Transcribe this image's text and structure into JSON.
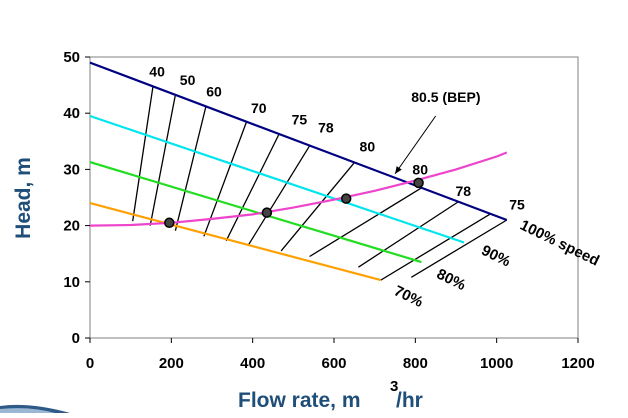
{
  "chart_data": {
    "type": "line",
    "title": "",
    "xlabel": "Flow rate, m",
    "xlabel_superscript": "3",
    "xlabel_suffix": "/hr",
    "ylabel": "Head, m",
    "xlim": [
      0,
      1200
    ],
    "ylim": [
      0,
      50
    ],
    "x_ticks": [
      "0",
      "200",
      "400",
      "600",
      "800",
      "1000",
      "1200"
    ],
    "y_ticks": [
      "0",
      "10",
      "20",
      "30",
      "40",
      "50"
    ],
    "grid": false,
    "speed_curves": [
      {
        "label": "100% speed",
        "color": "#000080",
        "x": [
          0,
          1025
        ],
        "y": [
          49,
          21
        ]
      },
      {
        "label": "90%",
        "color": "#00e5ee",
        "x": [
          0,
          920
        ],
        "y": [
          39.5,
          17
        ]
      },
      {
        "label": "80%",
        "color": "#22dd22",
        "x": [
          0,
          815
        ],
        "y": [
          31.3,
          13.5
        ]
      },
      {
        "label": "70%",
        "color": "#ffa000",
        "x": [
          0,
          715
        ],
        "y": [
          24,
          10.3
        ]
      }
    ],
    "system_curve": {
      "color": "#ee44cc",
      "x": [
        0,
        100,
        200,
        300,
        400,
        500,
        600,
        700,
        800,
        900,
        1000,
        1025
      ],
      "y": [
        20,
        20.1,
        20.5,
        21.2,
        22,
        23.2,
        24.6,
        26.2,
        28,
        30,
        32.3,
        33
      ]
    },
    "iso_efficiency": [
      {
        "label": "40",
        "x": [
          155,
          105
        ],
        "y": [
          44.8,
          20.8
        ]
      },
      {
        "label": "50",
        "x": [
          210,
          148
        ],
        "y": [
          43.3,
          20.0
        ]
      },
      {
        "label": "60",
        "x": [
          285,
          210
        ],
        "y": [
          41.2,
          19.1
        ]
      },
      {
        "label": "70",
        "x": [
          385,
          280
        ],
        "y": [
          38.5,
          18.1
        ]
      },
      {
        "label": "75",
        "x": [
          465,
          335
        ],
        "y": [
          36.3,
          17.3
        ]
      },
      {
        "label": "78",
        "x": [
          540,
          390
        ],
        "y": [
          34.2,
          16.6
        ]
      },
      {
        "label": "80",
        "x": [
          650,
          470
        ],
        "y": [
          31.2,
          15.5
        ]
      },
      {
        "label": "80.5",
        "x": [
          815,
          540
        ],
        "y": [
          26.7,
          14.5
        ]
      },
      {
        "label": "80",
        "x": [
          905,
          660
        ],
        "y": [
          24.2,
          12.6
        ]
      },
      {
        "label": "78",
        "x": [
          985,
          715
        ],
        "y": [
          22.1,
          10.3
        ]
      },
      {
        "label": "75",
        "x": [
          1025,
          790
        ],
        "y": [
          21.0,
          10.8
        ]
      }
    ],
    "efficiency_labels": [
      {
        "text": "40",
        "x": 165,
        "y": 46.5
      },
      {
        "text": "50",
        "x": 240,
        "y": 45.0
      },
      {
        "text": "60",
        "x": 305,
        "y": 43.0
      },
      {
        "text": "70",
        "x": 415,
        "y": 40.0
      },
      {
        "text": "75",
        "x": 515,
        "y": 38.0
      },
      {
        "text": "78",
        "x": 580,
        "y": 36.6
      },
      {
        "text": "80",
        "x": 682,
        "y": 33.2
      },
      {
        "text": "80",
        "x": 812,
        "y": 29.1
      },
      {
        "text": "78",
        "x": 918,
        "y": 25.3
      },
      {
        "text": "75",
        "x": 1050,
        "y": 22.9
      }
    ],
    "bep_annotation": {
      "text": "80.5 (BEP)",
      "label_x": 790,
      "label_y": 42.0,
      "arrow_from": [
        850,
        39.5
      ],
      "arrow_to": [
        750,
        29.2
      ]
    },
    "operating_points": [
      {
        "x": 195,
        "y": 20.5
      },
      {
        "x": 435,
        "y": 22.3
      },
      {
        "x": 630,
        "y": 24.8
      },
      {
        "x": 808,
        "y": 27.6
      }
    ],
    "speed_labels": [
      {
        "text": "100% speed",
        "x": 1055,
        "y": 19.5,
        "angle": 26
      },
      {
        "text": "90%",
        "x": 960,
        "y": 15.0,
        "angle": 26
      },
      {
        "text": "80%",
        "x": 850,
        "y": 10.8,
        "angle": 26
      },
      {
        "text": "70%",
        "x": 745,
        "y": 7.8,
        "angle": 26
      }
    ]
  }
}
